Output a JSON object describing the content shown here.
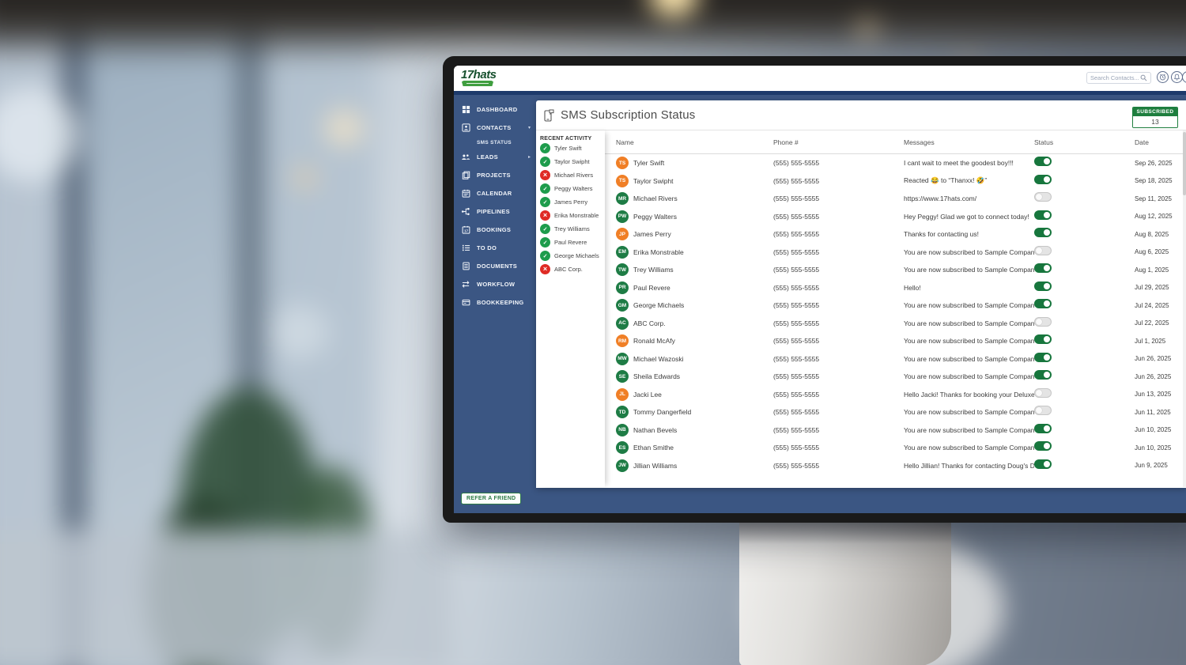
{
  "colors": {
    "app_blue": "#3B5683",
    "navy_line": "#1D3A6B",
    "logo_green": "#17502E",
    "banner_green": "#3F9E3F",
    "avatar_green": "#1E7C45",
    "avatar_orange": "#F07F26",
    "check_green": "#1E9C4C",
    "x_red": "#DF2B25",
    "toggle_on": "#17763D",
    "badge_green": "#1E7E3E",
    "button_green": "#2E7D46"
  },
  "brand": {
    "name": "17hats"
  },
  "header": {
    "search_placeholder": "Search Contacts...",
    "icons": [
      "search-icon",
      "timer-icon",
      "alerts-icon",
      "account-icon"
    ]
  },
  "sidebar": {
    "items": [
      {
        "id": "dashboard",
        "label": "DASHBOARD",
        "icon": "dashboard-icon"
      },
      {
        "id": "contacts",
        "label": "CONTACTS",
        "icon": "contacts-icon",
        "caret": "down",
        "sub": "SMS STATUS"
      },
      {
        "id": "leads",
        "label": "LEADS",
        "icon": "leads-icon",
        "caret": "right"
      },
      {
        "id": "projects",
        "label": "PROJECTS",
        "icon": "projects-icon"
      },
      {
        "id": "calendar",
        "label": "CALENDAR",
        "icon": "calendar-icon"
      },
      {
        "id": "pipelines",
        "label": "PIPELINES",
        "icon": "pipelines-icon"
      },
      {
        "id": "bookings",
        "label": "BOOKINGS",
        "icon": "bookings-icon"
      },
      {
        "id": "todo",
        "label": "TO DO",
        "icon": "todo-icon"
      },
      {
        "id": "documents",
        "label": "DOCUMENTS",
        "icon": "documents-icon"
      },
      {
        "id": "workflow",
        "label": "WORKFLOW",
        "icon": "workflow-icon"
      },
      {
        "id": "bookkeeping",
        "label": "BOOKKEEPING",
        "icon": "bookkeeping-icon"
      }
    ],
    "refer_button": "REFER A FRIEND"
  },
  "page": {
    "title": "SMS Subscription Status",
    "title_icon": "sms-phone-icon",
    "subscribed_label": "SUBSCRIBED",
    "subscribed_count": "13"
  },
  "recent_activity": {
    "title": "RECENT ACTIVITY",
    "items": [
      {
        "name": "Tyler Swift",
        "status": "subscribed"
      },
      {
        "name": "Taylor Swipht",
        "status": "subscribed"
      },
      {
        "name": "Michael Rivers",
        "status": "unsubscribed"
      },
      {
        "name": "Peggy Walters",
        "status": "subscribed"
      },
      {
        "name": "James Perry",
        "status": "subscribed"
      },
      {
        "name": "Erika Monstrable",
        "status": "unsubscribed"
      },
      {
        "name": "Trey Williams",
        "status": "subscribed"
      },
      {
        "name": "Paul Revere",
        "status": "subscribed"
      },
      {
        "name": "George Michaels",
        "status": "subscribed"
      },
      {
        "name": "ABC Corp.",
        "status": "unsubscribed"
      }
    ]
  },
  "table": {
    "columns": [
      "Name",
      "Phone #",
      "Messages",
      "Status",
      "Date"
    ],
    "rows": [
      {
        "initials": "TS",
        "color": "orange",
        "name": "Tyler Swift",
        "phone": "(555) 555-5555",
        "message": "I cant wait to meet the goodest boy!!!",
        "subscribed": true,
        "date": "Sep 26, 2025"
      },
      {
        "initials": "TS",
        "color": "orange",
        "name": "Taylor Swipht",
        "phone": "(555) 555-5555",
        "message": "Reacted 😂 to “Thanxx! 🤣”",
        "subscribed": true,
        "date": "Sep 18, 2025"
      },
      {
        "initials": "MR",
        "color": "green",
        "name": "Michael Rivers",
        "phone": "(555) 555-5555",
        "message": "https://www.17hats.com/",
        "subscribed": false,
        "date": "Sep 11, 2025"
      },
      {
        "initials": "PW",
        "color": "green",
        "name": "Peggy Walters",
        "phone": "(555) 555-5555",
        "message": "Hey Peggy! Glad we got to connect today!",
        "subscribed": true,
        "date": "Aug 12, 2025"
      },
      {
        "initials": "JP",
        "color": "orange",
        "name": "James Perry",
        "phone": "(555) 555-5555",
        "message": "Thanks for contacting us!",
        "subscribed": true,
        "date": "Aug 8, 2025"
      },
      {
        "initials": "EM",
        "color": "green",
        "name": "Erika Monstrable",
        "phone": "(555) 555-5555",
        "message": "You are now subscribed to Sample Company I...",
        "subscribed": false,
        "date": "Aug 6, 2025"
      },
      {
        "initials": "TW",
        "color": "green",
        "name": "Trey Williams",
        "phone": "(555) 555-5555",
        "message": "You are now subscribed to Sample Company I...",
        "subscribed": true,
        "date": "Aug 1, 2025"
      },
      {
        "initials": "PR",
        "color": "green",
        "name": "Paul Revere",
        "phone": "(555) 555-5555",
        "message": "Hello!",
        "subscribed": true,
        "date": "Jul 29, 2025"
      },
      {
        "initials": "GM",
        "color": "green",
        "name": "George Michaels",
        "phone": "(555) 555-5555",
        "message": "You are now subscribed to Sample Company I...",
        "subscribed": true,
        "date": "Jul 24, 2025"
      },
      {
        "initials": "AC",
        "color": "green",
        "name": "ABC Corp.",
        "phone": "(555) 555-5555",
        "message": "You are now subscribed to Sample Company I...",
        "subscribed": false,
        "date": "Jul 22, 2025"
      },
      {
        "initials": "RM",
        "color": "orange",
        "name": "Ronald McAfy",
        "phone": "(555) 555-5555",
        "message": "You are now subscribed to Sample Company I...",
        "subscribed": true,
        "date": "Jul 1, 2025"
      },
      {
        "initials": "MW",
        "color": "green",
        "name": "Michael Wazoski",
        "phone": "(555) 555-5555",
        "message": "You are now subscribed to Sample Company I...",
        "subscribed": true,
        "date": "Jun 26, 2025"
      },
      {
        "initials": "SE",
        "color": "green",
        "name": "Sheila Edwards",
        "phone": "(555) 555-5555",
        "message": "You are now subscribed to Sample Company I...",
        "subscribed": true,
        "date": "Jun 26, 2025"
      },
      {
        "initials": "JL",
        "color": "orange",
        "name": "Jacki Lee",
        "phone": "(555) 555-5555",
        "message": "Hello Jacki! Thanks for booking your Deluxe Pu...",
        "subscribed": false,
        "date": "Jun 13, 2025"
      },
      {
        "initials": "TD",
        "color": "green",
        "name": "Tommy Dangerfield",
        "phone": "(555) 555-5555",
        "message": "You are now subscribed to Sample Company I...",
        "subscribed": false,
        "date": "Jun 11, 2025"
      },
      {
        "initials": "NB",
        "color": "green",
        "name": "Nathan Bevels",
        "phone": "(555) 555-5555",
        "message": "You are now subscribed to Sample Company I...",
        "subscribed": true,
        "date": "Jun 10, 2025"
      },
      {
        "initials": "ES",
        "color": "green",
        "name": "Ethan Smithe",
        "phone": "(555) 555-5555",
        "message": "You are now subscribed to Sample Company I...",
        "subscribed": true,
        "date": "Jun 10, 2025"
      },
      {
        "initials": "JW",
        "color": "green",
        "name": "Jillian Williams",
        "phone": "(555) 555-5555",
        "message": "Hello Jillian! Thanks for contacting Doug's Dog ...",
        "subscribed": true,
        "date": "Jun 9, 2025"
      }
    ]
  }
}
